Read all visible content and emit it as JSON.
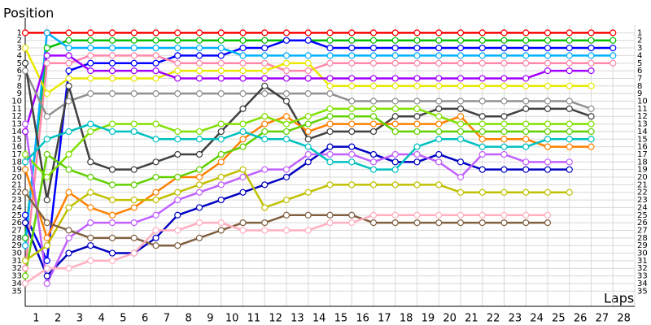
{
  "chart_data": {
    "type": "line",
    "y_label": "Position",
    "x_label": "Laps",
    "x": [
      0,
      1,
      2,
      3,
      4,
      5,
      6,
      7,
      8,
      9,
      10,
      11,
      12,
      13,
      14,
      15,
      16,
      17,
      18,
      19,
      20,
      21,
      22,
      23,
      24,
      25,
      26,
      27
    ],
    "xlim": [
      0,
      28
    ],
    "xticks": [
      1,
      2,
      3,
      4,
      5,
      6,
      7,
      8,
      9,
      10,
      11,
      12,
      13,
      14,
      15,
      16,
      17,
      18,
      19,
      20,
      21,
      22,
      23,
      24,
      25,
      26,
      27,
      28
    ],
    "ylim": [
      37,
      0
    ],
    "yticks": [
      1,
      2,
      3,
      4,
      5,
      6,
      7,
      8,
      9,
      10,
      11,
      12,
      13,
      14,
      15,
      16,
      17,
      18,
      19,
      20,
      21,
      22,
      23,
      24,
      25,
      26,
      27,
      28,
      29,
      30,
      31,
      32,
      33,
      34,
      35
    ],
    "grid": true,
    "series": [
      {
        "color": "#ff0000",
        "values": [
          1,
          1,
          1,
          1,
          1,
          1,
          1,
          1,
          1,
          1,
          1,
          1,
          1,
          1,
          1,
          1,
          1,
          1,
          1,
          1,
          1,
          1,
          1,
          1,
          1,
          1,
          1,
          1
        ]
      },
      {
        "color": "#00c000",
        "values": [
          28,
          3,
          2,
          2,
          2,
          2,
          2,
          2,
          2,
          2,
          2,
          2,
          2,
          2,
          2,
          2,
          2,
          2,
          2,
          2,
          2,
          2,
          2,
          2,
          2,
          2,
          2,
          2
        ]
      },
      {
        "color": "#0000ff",
        "values": [
          25,
          31,
          6,
          5,
          5,
          5,
          5,
          4,
          4,
          4,
          3,
          3,
          2,
          2,
          3,
          3,
          3,
          3,
          3,
          3,
          3,
          3,
          3,
          3,
          3,
          3,
          3,
          3
        ]
      },
      {
        "color": "#00b0ff",
        "values": [
          29,
          1,
          3,
          3,
          3,
          3,
          3,
          3,
          3,
          3,
          4,
          4,
          4,
          4,
          4,
          4,
          4,
          4,
          4,
          4,
          4,
          4,
          4,
          4,
          4,
          4,
          4,
          4
        ]
      },
      {
        "color": "#ff88aa",
        "values": [
          32,
          5,
          5,
          4,
          4,
          4,
          4,
          5,
          5,
          5,
          5,
          5,
          6,
          6,
          5,
          5,
          5,
          5,
          5,
          5,
          5,
          5,
          5,
          5,
          5,
          5,
          5,
          5
        ]
      },
      {
        "color": "#e8e800",
        "values": [
          3,
          9,
          7,
          7,
          7,
          7,
          7,
          6,
          6,
          6,
          6,
          6,
          5,
          5,
          8,
          8,
          8,
          8,
          8,
          8,
          8,
          8,
          8,
          8,
          8,
          8,
          8,
          null
        ]
      },
      {
        "color": "#a000ff",
        "values": [
          14,
          4,
          4,
          6,
          6,
          6,
          6,
          7,
          7,
          7,
          7,
          7,
          7,
          7,
          7,
          7,
          7,
          7,
          7,
          7,
          7,
          7,
          7,
          7,
          6,
          6,
          6,
          null
        ]
      },
      {
        "color": "#909090",
        "values": [
          6,
          12,
          10,
          9,
          9,
          9,
          9,
          9,
          9,
          9,
          9,
          9,
          9,
          9,
          9,
          10,
          10,
          10,
          10,
          10,
          10,
          10,
          10,
          10,
          10,
          10,
          11,
          null
        ]
      },
      {
        "color": "#404040",
        "values": [
          5,
          23,
          8,
          18,
          19,
          19,
          18,
          17,
          17,
          14,
          11,
          8,
          10,
          15,
          14,
          14,
          14,
          12,
          12,
          11,
          11,
          12,
          12,
          11,
          11,
          11,
          12,
          null
        ]
      },
      {
        "color": "#ff8000",
        "values": [
          19,
          28,
          22,
          24,
          25,
          24,
          22,
          20,
          20,
          18,
          15,
          13,
          12,
          14,
          13,
          13,
          13,
          13,
          13,
          13,
          12,
          15,
          15,
          15,
          16,
          16,
          16,
          null
        ]
      },
      {
        "color": "#80e000",
        "values": [
          17,
          20,
          17,
          14,
          13,
          13,
          13,
          14,
          14,
          13,
          13,
          12,
          13,
          12,
          11,
          11,
          11,
          11,
          11,
          12,
          13,
          13,
          13,
          13,
          13,
          13,
          13,
          null
        ]
      },
      {
        "color": "#0000c0",
        "values": [
          26,
          33,
          30,
          29,
          30,
          30,
          28,
          25,
          24,
          23,
          22,
          21,
          20,
          18,
          16,
          16,
          17,
          18,
          18,
          17,
          18,
          19,
          19,
          19,
          19,
          19,
          null,
          null
        ]
      },
      {
        "color": "#60d000",
        "values": [
          33,
          17,
          19,
          20,
          21,
          21,
          20,
          20,
          19,
          17,
          16,
          14,
          14,
          13,
          12,
          12,
          12,
          14,
          14,
          14,
          14,
          14,
          14,
          14,
          14,
          14,
          14,
          null
        ]
      },
      {
        "color": "#c060ff",
        "values": [
          13,
          34,
          28,
          26,
          26,
          26,
          25,
          23,
          22,
          21,
          20,
          19,
          19,
          17,
          17,
          17,
          18,
          17,
          17,
          18,
          20,
          17,
          17,
          18,
          18,
          18,
          null,
          null
        ]
      },
      {
        "color": "#c0c000",
        "values": [
          31,
          29,
          24,
          22,
          23,
          23,
          23,
          22,
          21,
          20,
          19,
          24,
          23,
          22,
          21,
          21,
          21,
          21,
          21,
          21,
          22,
          22,
          22,
          22,
          22,
          22,
          null,
          null
        ]
      },
      {
        "color": "#00c0c0",
        "values": [
          18,
          15,
          14,
          13,
          14,
          14,
          15,
          15,
          15,
          15,
          14,
          15,
          15,
          16,
          18,
          18,
          19,
          19,
          16,
          15,
          15,
          16,
          16,
          16,
          15,
          15,
          15,
          null
        ]
      },
      {
        "color": "#806040",
        "values": [
          22,
          26,
          27,
          28,
          28,
          28,
          29,
          29,
          28,
          27,
          26,
          26,
          25,
          25,
          25,
          25,
          26,
          26,
          26,
          26,
          26,
          26,
          26,
          26,
          26,
          null,
          null,
          null
        ]
      },
      {
        "color": "#ffb0c0",
        "values": [
          34,
          32,
          32,
          31,
          31,
          30,
          27,
          27,
          26,
          26,
          27,
          27,
          27,
          27,
          26,
          26,
          25,
          25,
          25,
          25,
          25,
          25,
          25,
          25,
          25,
          null,
          null,
          null
        ]
      }
    ]
  }
}
